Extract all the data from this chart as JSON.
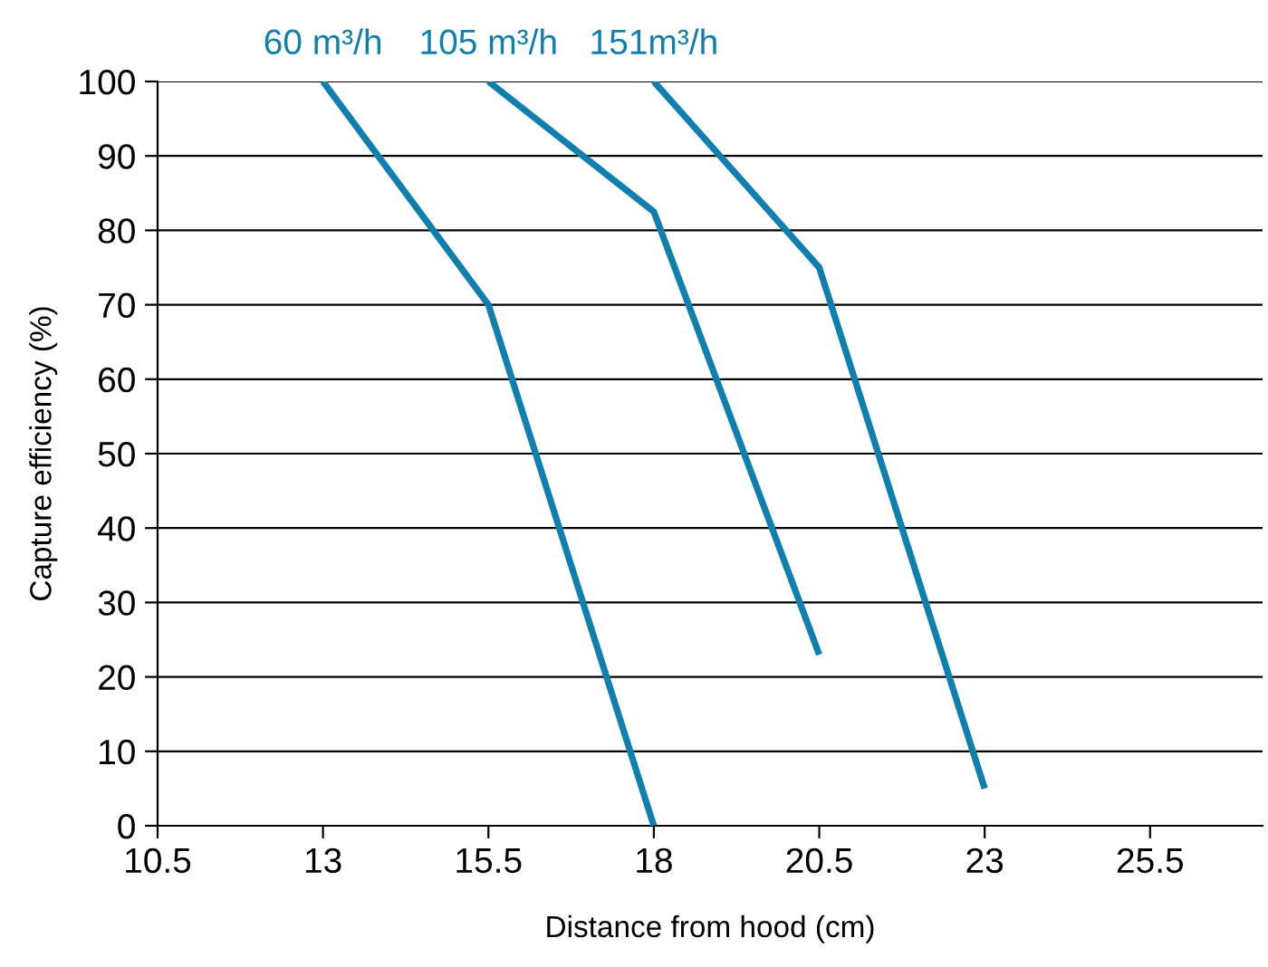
{
  "chart_data": {
    "type": "line",
    "xlabel": "Distance from hood (cm)",
    "ylabel": "Capture efficiency (%)",
    "series": [
      {
        "name": "60 m³/h",
        "color": "#0f7fb0",
        "x": [
          13,
          15.5,
          18
        ],
        "values": [
          100,
          70,
          0
        ]
      },
      {
        "name": "105 m³/h",
        "color": "#0f7fb0",
        "x": [
          15.5,
          18,
          20.5
        ],
        "values": [
          100,
          82.5,
          23
        ]
      },
      {
        "name": "151m³/h",
        "color": "#0f7fb0",
        "x": [
          18,
          20.5,
          23
        ],
        "values": [
          100,
          75,
          5
        ]
      }
    ],
    "xlim": [
      10.5,
      27.2
    ],
    "xticks": [
      10.5,
      13,
      15.5,
      18,
      20.5,
      23,
      25.5
    ],
    "ylim": [
      0,
      100
    ],
    "yticks": [
      0,
      10,
      20,
      30,
      40,
      50,
      60,
      70,
      80,
      90,
      100
    ],
    "grid": "y",
    "marker": "none",
    "line_style": "solid"
  }
}
